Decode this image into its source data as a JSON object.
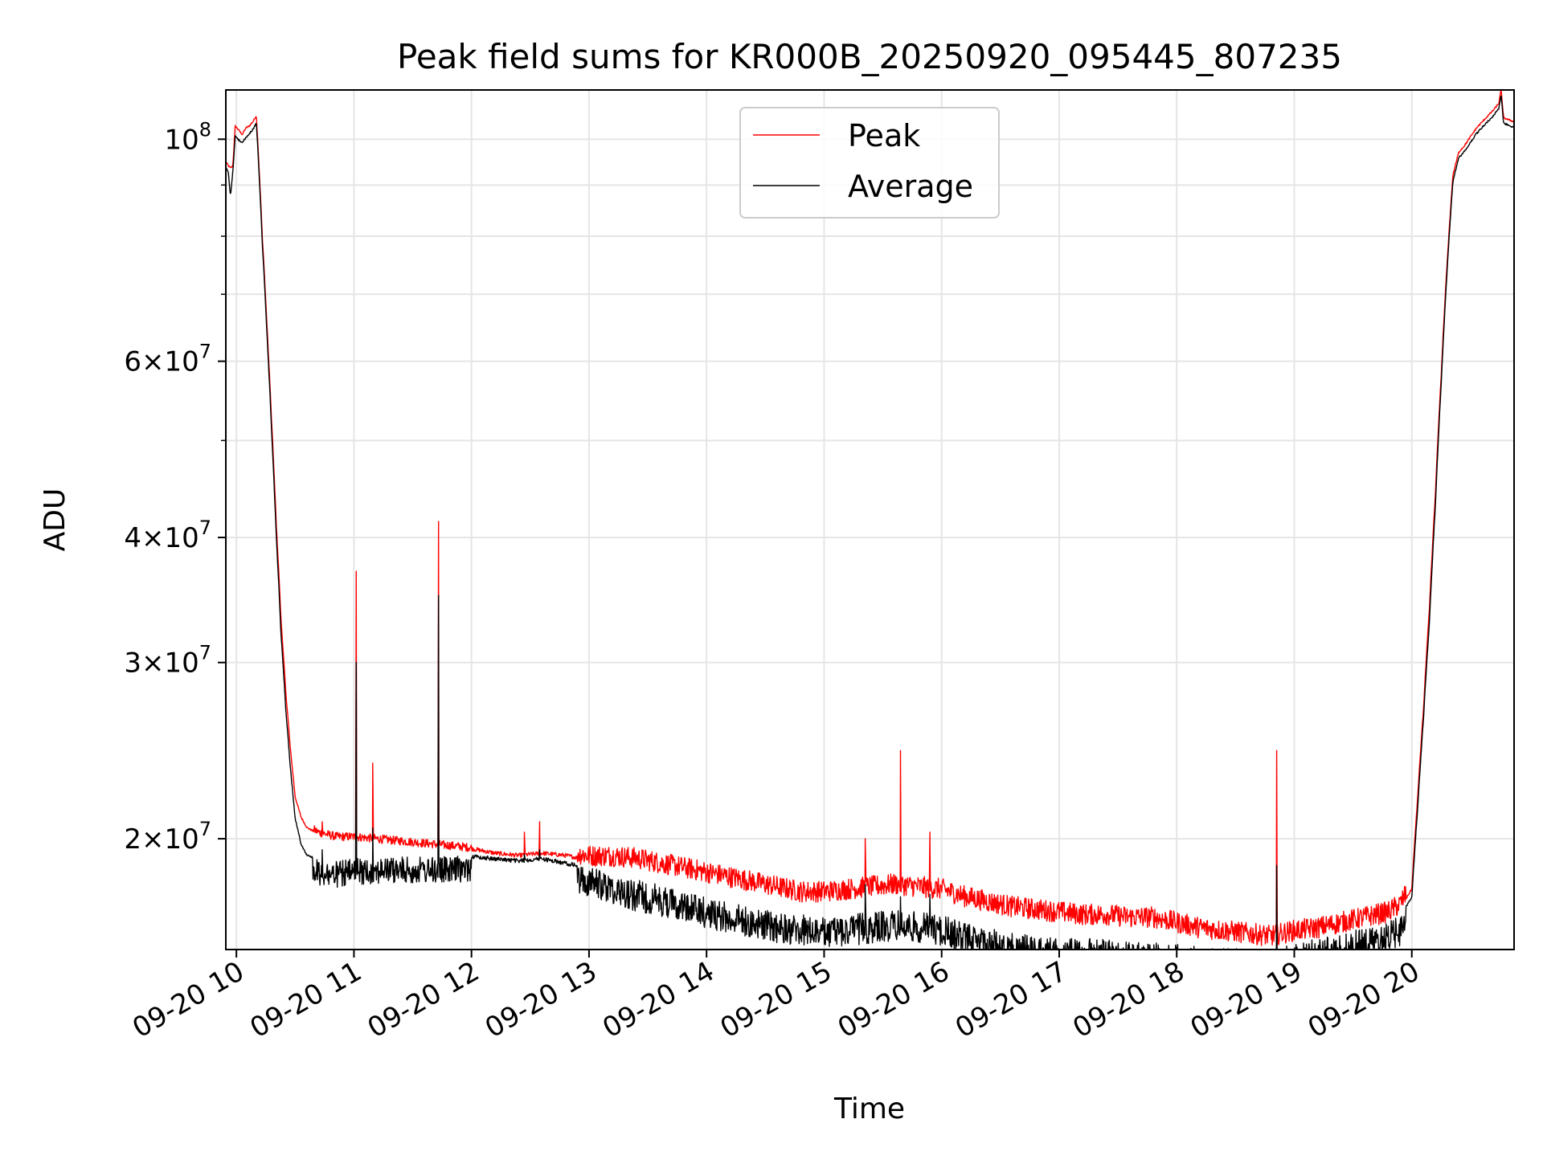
{
  "chart_data": {
    "type": "line",
    "title": "Peak field sums for KR000B_20250920_095445_807235",
    "xlabel": "Time",
    "ylabel": "ADU",
    "yscale": "log",
    "ylim": [
      15500000,
      112000000
    ],
    "xlim_hours": [
      9.91,
      20.87
    ],
    "grid": true,
    "legend_position": "top-center",
    "x_ticks": [
      {
        "label": "09-20 10",
        "hour": 10
      },
      {
        "label": "09-20 11",
        "hour": 11
      },
      {
        "label": "09-20 12",
        "hour": 12
      },
      {
        "label": "09-20 13",
        "hour": 13
      },
      {
        "label": "09-20 14",
        "hour": 14
      },
      {
        "label": "09-20 15",
        "hour": 15
      },
      {
        "label": "09-20 16",
        "hour": 16
      },
      {
        "label": "09-20 17",
        "hour": 17
      },
      {
        "label": "09-20 18",
        "hour": 18
      },
      {
        "label": "09-20 19",
        "hour": 19
      },
      {
        "label": "09-20 20",
        "hour": 20
      }
    ],
    "y_major_ticks": [
      {
        "value": 100000000,
        "mantissa": "",
        "base": "10",
        "exp": "8"
      },
      {
        "value": 60000000,
        "mantissa": "6×",
        "base": "10",
        "exp": "7"
      },
      {
        "value": 40000000,
        "mantissa": "4×",
        "base": "10",
        "exp": "7"
      },
      {
        "value": 30000000,
        "mantissa": "3×",
        "base": "10",
        "exp": "7"
      },
      {
        "value": 20000000,
        "mantissa": "2×",
        "base": "10",
        "exp": "7"
      }
    ],
    "y_minor_ticks": [
      50000000,
      70000000,
      80000000,
      90000000
    ],
    "series": [
      {
        "name": "Peak",
        "color": "#ff0000",
        "x": [
          9.91,
          9.93,
          9.95,
          9.97,
          9.99,
          10.02,
          10.05,
          10.08,
          10.11,
          10.14,
          10.17,
          10.19,
          10.22,
          10.26,
          10.3,
          10.34,
          10.38,
          10.42,
          10.46,
          10.5,
          10.55,
          10.6,
          10.7,
          10.85,
          11.0,
          11.2,
          11.4,
          11.6,
          11.8,
          12.0,
          12.2,
          12.4,
          12.6,
          12.8,
          13.0,
          13.2,
          13.4,
          13.6,
          13.8,
          14.0,
          14.2,
          14.4,
          14.6,
          14.8,
          15.0,
          15.2,
          15.4,
          15.6,
          15.8,
          16.0,
          16.2,
          16.4,
          16.6,
          16.8,
          17.0,
          17.2,
          17.4,
          17.6,
          17.8,
          18.0,
          18.2,
          18.4,
          18.6,
          18.8,
          19.0,
          19.2,
          19.4,
          19.6,
          19.8,
          19.9,
          20.0,
          20.05,
          20.1,
          20.15,
          20.2,
          20.25,
          20.3,
          20.35,
          20.4,
          20.45,
          20.5,
          20.55,
          20.6,
          20.65,
          20.7,
          20.74,
          20.76,
          20.78,
          20.82,
          20.87
        ],
        "y": [
          95000000,
          94000000,
          93500000,
          94000000,
          103000000,
          102000000,
          101000000,
          102500000,
          103000000,
          104000000,
          105500000,
          95000000,
          80000000,
          65000000,
          52000000,
          41000000,
          33000000,
          28000000,
          24500000,
          22000000,
          21000000,
          20500000,
          20200000,
          20000000,
          20000000,
          19900000,
          19800000,
          19700000,
          19600000,
          19500000,
          19300000,
          19200000,
          19300000,
          19200000,
          19000000,
          19000000,
          18900000,
          18700000,
          18500000,
          18300000,
          18100000,
          17900000,
          17700000,
          17500000,
          17500000,
          17600000,
          17700000,
          17800000,
          17700000,
          17600000,
          17300000,
          17100000,
          16900000,
          16800000,
          16700000,
          16600000,
          16600000,
          16500000,
          16500000,
          16300000,
          16100000,
          16000000,
          15900000,
          15800000,
          16000000,
          16100000,
          16300000,
          16500000,
          16700000,
          17000000,
          17800000,
          22000000,
          27000000,
          34000000,
          44000000,
          58000000,
          75000000,
          92000000,
          97000000,
          98500000,
          100500000,
          102500000,
          104000000,
          105500000,
          107000000,
          108500000,
          112000000,
          105000000,
          104500000,
          104000000
        ]
      },
      {
        "name": "Average",
        "color": "#000000",
        "x": [
          9.91,
          9.93,
          9.95,
          9.97,
          9.99,
          10.02,
          10.05,
          10.08,
          10.11,
          10.14,
          10.17,
          10.19,
          10.22,
          10.26,
          10.3,
          10.34,
          10.38,
          10.42,
          10.46,
          10.5,
          10.55,
          10.6,
          10.7,
          10.85,
          11.0,
          11.2,
          11.4,
          11.6,
          11.8,
          12.0,
          12.2,
          12.4,
          12.6,
          12.8,
          13.0,
          13.2,
          13.4,
          13.6,
          13.8,
          14.0,
          14.2,
          14.4,
          14.6,
          14.8,
          15.0,
          15.2,
          15.4,
          15.6,
          15.8,
          16.0,
          16.2,
          16.4,
          16.6,
          16.8,
          17.0,
          17.2,
          17.4,
          17.6,
          17.8,
          18.0,
          18.2,
          18.4,
          18.6,
          18.8,
          19.0,
          19.2,
          19.4,
          19.6,
          19.8,
          19.9,
          20.0,
          20.05,
          20.1,
          20.15,
          20.2,
          20.25,
          20.3,
          20.35,
          20.4,
          20.45,
          20.5,
          20.55,
          20.6,
          20.65,
          20.7,
          20.74,
          20.76,
          20.78,
          20.82,
          20.87
        ],
        "y": [
          94000000,
          93000000,
          88000000,
          93000000,
          101000000,
          100000000,
          99500000,
          100500000,
          101500000,
          102500000,
          104000000,
          94000000,
          79000000,
          64000000,
          51000000,
          40000000,
          32000000,
          27000000,
          23500000,
          21000000,
          19800000,
          19300000,
          19100000,
          19000000,
          19100000,
          19200000,
          19200000,
          19200000,
          19200000,
          19300000,
          19200000,
          19100000,
          19200000,
          19000000,
          18800000,
          18500000,
          18200000,
          18000000,
          17800000,
          17500000,
          17300000,
          17100000,
          16900000,
          16800000,
          16700000,
          16800000,
          16900000,
          17000000,
          16900000,
          16800000,
          16500000,
          16300000,
          16100000,
          16000000,
          15900000,
          15900000,
          15900000,
          15800000,
          15800000,
          15700000,
          15600000,
          15600000,
          15500000,
          15500000,
          15700000,
          15900000,
          16100000,
          16300000,
          16500000,
          16800000,
          17500000,
          21500000,
          26500000,
          33000000,
          43000000,
          57000000,
          74000000,
          91000000,
          96000000,
          97500000,
          99500000,
          101500000,
          103000000,
          104500000,
          106000000,
          107500000,
          111000000,
          104000000,
          103500000,
          103000000
        ]
      }
    ],
    "spikes": [
      {
        "hour": 10.73,
        "peak": 20800000,
        "average": 19500000
      },
      {
        "hour": 11.02,
        "peak": 37000000,
        "average": 30000000
      },
      {
        "hour": 11.16,
        "peak": 23800000,
        "average": 20500000
      },
      {
        "hour": 11.72,
        "peak": 41500000,
        "average": 35000000
      },
      {
        "hour": 12.45,
        "peak": 20300000,
        "average": 19300000
      },
      {
        "hour": 12.58,
        "peak": 20800000,
        "average": 19500000
      },
      {
        "hour": 15.35,
        "peak": 20000000,
        "average": 18000000
      },
      {
        "hour": 15.65,
        "peak": 24500000,
        "average": 17500000
      },
      {
        "hour": 15.9,
        "peak": 20300000,
        "average": 17600000
      },
      {
        "hour": 18.85,
        "peak": 24500000,
        "average": 18800000
      }
    ]
  }
}
